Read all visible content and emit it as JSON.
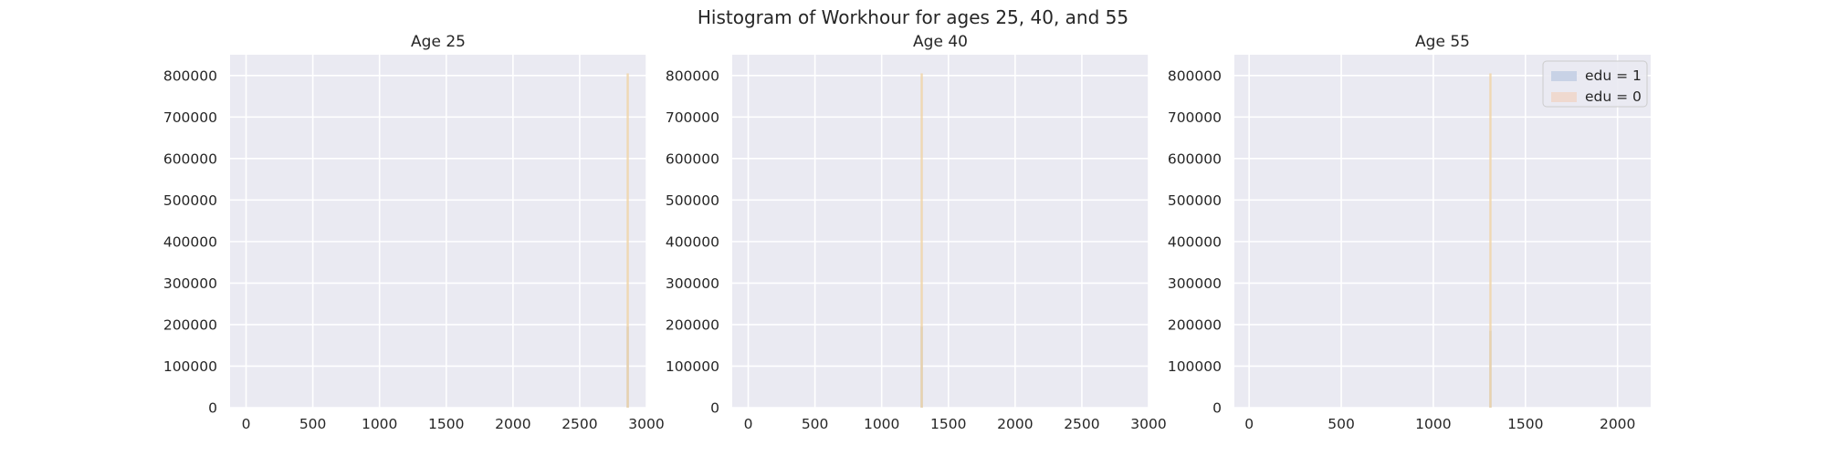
{
  "figure": {
    "suptitle": "Histogram of Workhour for ages 25, 40, and 55"
  },
  "colors": {
    "panel_bg": "#eaeaf2",
    "grid": "#ffffff",
    "edu1": "#c8d2e6",
    "edu0": "#efd9cf",
    "edu0_line": "#f0d5a8",
    "edu1_line": "#b8bcc8"
  },
  "legend": {
    "placement": "upper right of third panel",
    "entries": [
      {
        "label": "edu = 1",
        "color_key": "edu1"
      },
      {
        "label": "edu = 0",
        "color_key": "edu0"
      }
    ]
  },
  "chart_data": [
    {
      "type": "bar",
      "title": "Age 25",
      "xlim": [
        -120,
        3000
      ],
      "ylim": [
        0,
        850000
      ],
      "xticks": [
        0,
        500,
        1000,
        1500,
        2000,
        2500,
        3000
      ],
      "yticks": [
        0,
        100000,
        200000,
        300000,
        400000,
        500000,
        600000,
        700000,
        800000
      ],
      "series": [
        {
          "name": "edu = 1",
          "bars": [
            {
              "x": 2860,
              "count": 195000
            }
          ]
        },
        {
          "name": "edu = 0",
          "bars": [
            {
              "x": 2860,
              "count": 805000
            }
          ]
        }
      ]
    },
    {
      "type": "bar",
      "title": "Age 40",
      "xlim": [
        -120,
        3000
      ],
      "ylim": [
        0,
        850000
      ],
      "xticks": [
        0,
        500,
        1000,
        1500,
        2000,
        2500,
        3000
      ],
      "yticks": [
        0,
        100000,
        200000,
        300000,
        400000,
        500000,
        600000,
        700000,
        800000
      ],
      "series": [
        {
          "name": "edu = 1",
          "bars": [
            {
              "x": 1300,
              "count": 195000
            }
          ]
        },
        {
          "name": "edu = 0",
          "bars": [
            {
              "x": 1300,
              "count": 805000
            }
          ]
        }
      ]
    },
    {
      "type": "bar",
      "title": "Age 55",
      "xlim": [
        -80,
        2180
      ],
      "ylim": [
        0,
        850000
      ],
      "xticks": [
        0,
        500,
        1000,
        1500,
        2000
      ],
      "yticks": [
        0,
        100000,
        200000,
        300000,
        400000,
        500000,
        600000,
        700000,
        800000
      ],
      "series": [
        {
          "name": "edu = 1",
          "bars": [
            {
              "x": 1310,
              "count": 185000
            }
          ]
        },
        {
          "name": "edu = 0",
          "bars": [
            {
              "x": 1310,
              "count": 805000
            }
          ]
        }
      ]
    }
  ]
}
